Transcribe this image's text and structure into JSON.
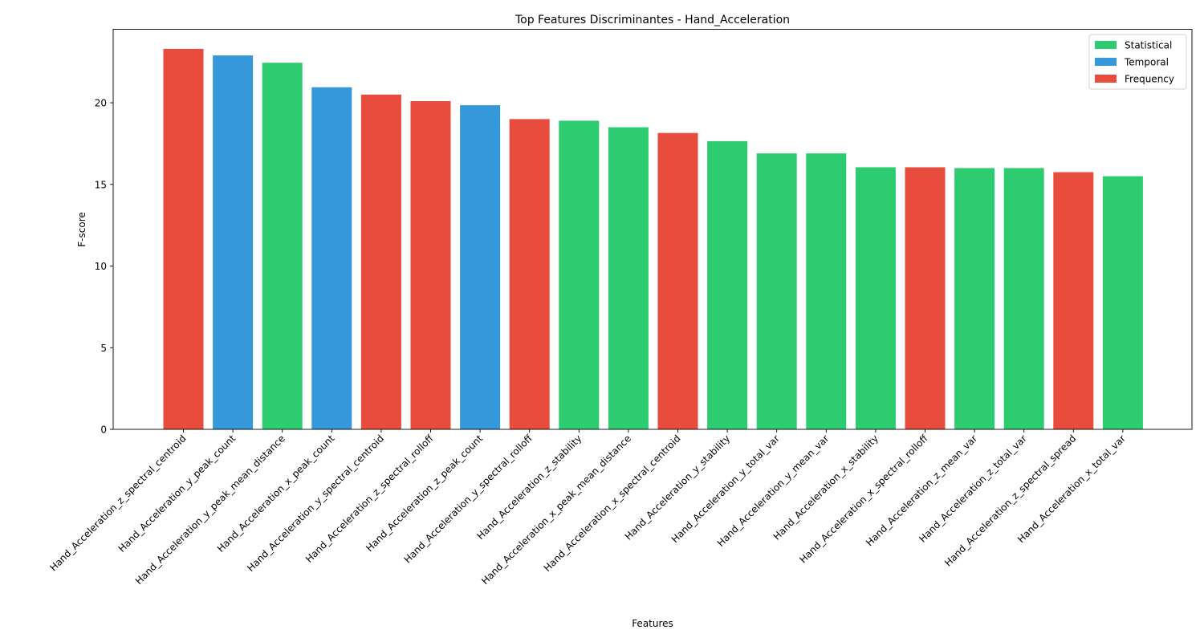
{
  "chart_data": {
    "type": "bar",
    "title": "Top Features Discriminantes - Hand_Acceleration",
    "xlabel": "Features",
    "ylabel": "F-score",
    "ylim": [
      0,
      24.5
    ],
    "yticks": [
      0,
      5,
      10,
      15,
      20
    ],
    "grid": false,
    "legend_position": "top-right",
    "legend": [
      {
        "label": "Statistical",
        "color": "#2ecc71"
      },
      {
        "label": "Temporal",
        "color": "#3498db"
      },
      {
        "label": "Frequency",
        "color": "#e74c3c"
      }
    ],
    "colors": {
      "Statistical": "#2ecc71",
      "Temporal": "#3498db",
      "Frequency": "#e74c3c"
    },
    "categories": [
      "Hand_Acceleration_z_spectral_centroid",
      "Hand_Acceleration_y_peak_count",
      "Hand_Acceleration_y_peak_mean_distance",
      "Hand_Acceleration_x_peak_count",
      "Hand_Acceleration_y_spectral_centroid",
      "Hand_Acceleration_z_spectral_rolloff",
      "Hand_Acceleration_z_peak_count",
      "Hand_Acceleration_y_spectral_rolloff",
      "Hand_Acceleration_z_stability",
      "Hand_Acceleration_x_peak_mean_distance",
      "Hand_Acceleration_x_spectral_centroid",
      "Hand_Acceleration_y_stability",
      "Hand_Acceleration_y_total_var",
      "Hand_Acceleration_y_mean_var",
      "Hand_Acceleration_x_stability",
      "Hand_Acceleration_x_spectral_rolloff",
      "Hand_Acceleration_z_mean_var",
      "Hand_Acceleration_z_total_var",
      "Hand_Acceleration_z_spectral_spread",
      "Hand_Acceleration_x_total_var"
    ],
    "values": [
      23.3,
      22.9,
      22.45,
      20.95,
      20.5,
      20.1,
      19.85,
      19.0,
      18.9,
      18.5,
      18.15,
      17.65,
      16.9,
      16.9,
      16.05,
      16.05,
      16.0,
      16.0,
      15.75,
      15.5
    ],
    "groups": [
      "Frequency",
      "Temporal",
      "Statistical",
      "Temporal",
      "Frequency",
      "Frequency",
      "Temporal",
      "Frequency",
      "Statistical",
      "Statistical",
      "Frequency",
      "Statistical",
      "Statistical",
      "Statistical",
      "Statistical",
      "Frequency",
      "Statistical",
      "Statistical",
      "Frequency",
      "Statistical"
    ]
  }
}
